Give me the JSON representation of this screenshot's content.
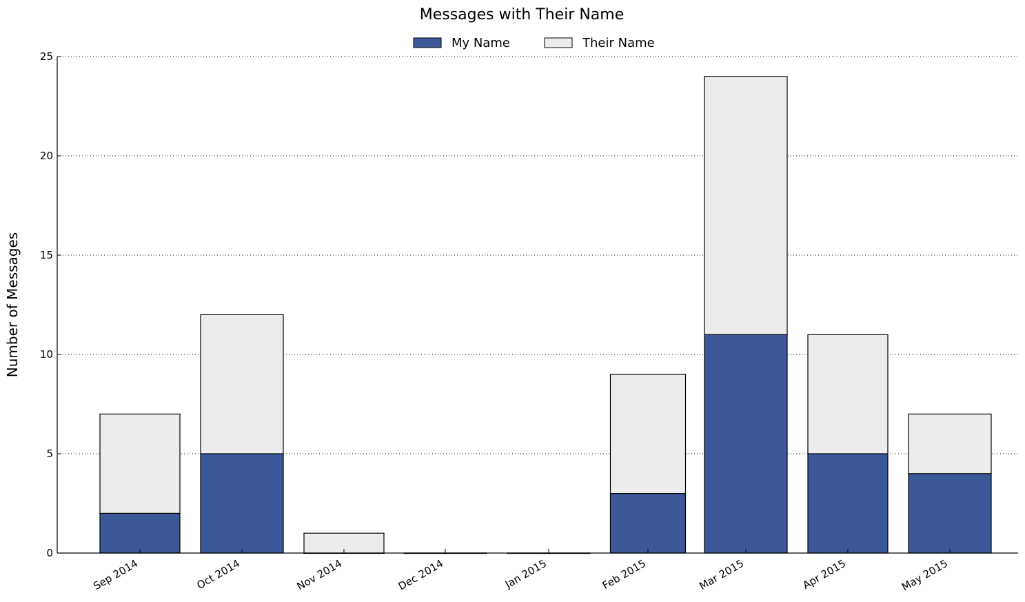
{
  "chart_data": {
    "type": "bar",
    "stacked": true,
    "title": "Messages with Their Name",
    "xlabel": "",
    "ylabel": "Number of Messages",
    "categories": [
      "Sep 2014",
      "Oct 2014",
      "Nov 2014",
      "Dec 2014",
      "Jan 2015",
      "Feb 2015",
      "Mar 2015",
      "Apr 2015",
      "May 2015"
    ],
    "series": [
      {
        "name": "My Name",
        "color": "#3b5998",
        "values": [
          2,
          5,
          0,
          0,
          0,
          3,
          11,
          5,
          4
        ]
      },
      {
        "name": "Their Name",
        "color": "#ececec",
        "values": [
          5,
          7,
          1,
          0,
          0,
          6,
          13,
          6,
          3
        ]
      }
    ],
    "ylim": [
      0,
      25
    ],
    "yticks": [
      0,
      5,
      10,
      15,
      20,
      25
    ],
    "grid": "horizontal-dotted",
    "legend": "top-center"
  }
}
